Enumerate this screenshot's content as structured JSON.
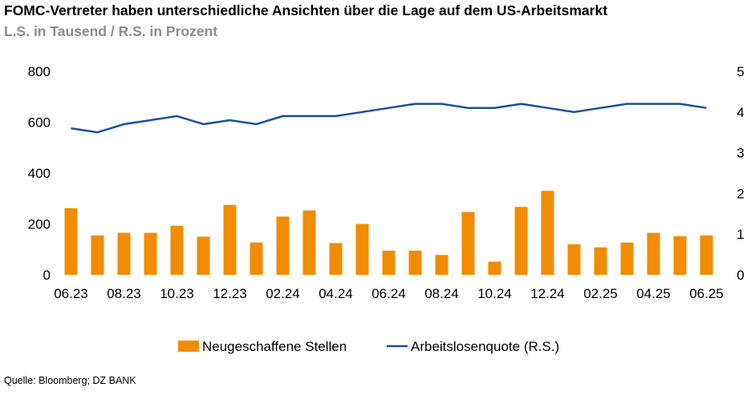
{
  "header": {
    "title": "FOMC-Vertreter haben unterschiedliche Ansichten über die Lage auf dem US-Arbeitsmarkt",
    "subtitle": "L.S. in Tausend / R.S. in Prozent"
  },
  "footer": {
    "source": "Quelle: Bloomberg; DZ BANK"
  },
  "colors": {
    "bar": "#F28C00",
    "line": "#1F4E9C"
  },
  "chart_data": {
    "type": "bar",
    "title": "FOMC-Vertreter haben unterschiedliche Ansichten über die Lage auf dem US-Arbeitsmarkt",
    "subtitle": "L.S. in Tausend / R.S. in Prozent",
    "categories": [
      "06.23",
      "07.23",
      "08.23",
      "09.23",
      "10.23",
      "11.23",
      "12.23",
      "01.24",
      "02.24",
      "03.24",
      "04.24",
      "05.24",
      "06.24",
      "07.24",
      "08.24",
      "09.24",
      "10.24",
      "11.24",
      "12.24",
      "01.25",
      "02.25",
      "03.25",
      "04.25",
      "05.25",
      "06.25"
    ],
    "x_tick_labels": [
      "06.23",
      "08.23",
      "10.23",
      "12.23",
      "02.24",
      "04.24",
      "06.24",
      "08.24",
      "10.24",
      "12.24",
      "02.25",
      "04.25",
      "06.25"
    ],
    "series": [
      {
        "name": "Neugeschaffene Stellen",
        "type": "bar",
        "axis": "left",
        "values": [
          262,
          155,
          165,
          165,
          193,
          150,
          275,
          127,
          229,
          253,
          125,
          200,
          95,
          95,
          78,
          247,
          52,
          267,
          330,
          120,
          108,
          127,
          165,
          152,
          155
        ]
      },
      {
        "name": "Arbeitslosenquote (R.S.)",
        "type": "line",
        "axis": "right",
        "values": [
          3.6,
          3.5,
          3.7,
          3.8,
          3.9,
          3.7,
          3.8,
          3.7,
          3.9,
          3.9,
          3.9,
          4.0,
          4.1,
          4.2,
          4.2,
          4.1,
          4.1,
          4.2,
          4.1,
          4.0,
          4.1,
          4.2,
          4.2,
          4.2,
          4.1
        ]
      }
    ],
    "y_left": {
      "ylim": [
        0,
        800
      ],
      "ticks": [
        "0",
        "200",
        "400",
        "600",
        "800"
      ]
    },
    "y_right": {
      "ylim": [
        0,
        5
      ],
      "ticks": [
        "0",
        "1",
        "2",
        "3",
        "4",
        "5"
      ]
    },
    "grid": false,
    "legend_position": "bottom"
  }
}
